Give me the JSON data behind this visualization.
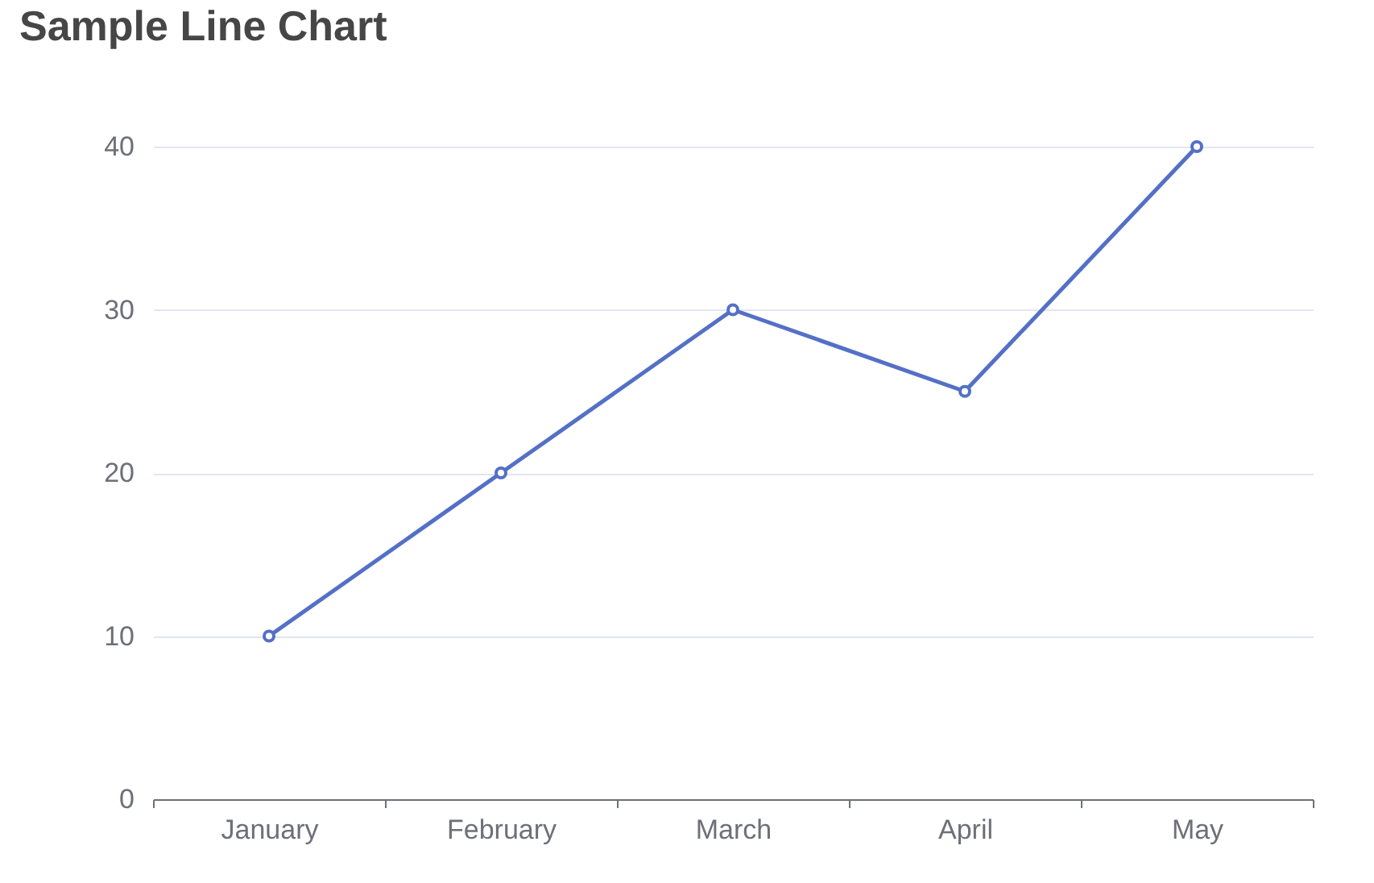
{
  "chart_data": {
    "type": "line",
    "title": "Sample Line Chart",
    "categories": [
      "January",
      "February",
      "March",
      "April",
      "May"
    ],
    "series": [
      {
        "color": "#5470c6",
        "values": [
          10,
          20,
          30,
          25,
          40
        ]
      }
    ],
    "ylim": [
      0,
      40
    ],
    "yticks": [
      0,
      10,
      20,
      30,
      40
    ],
    "grid": "y",
    "marker": "circle",
    "line_style": "solid"
  }
}
